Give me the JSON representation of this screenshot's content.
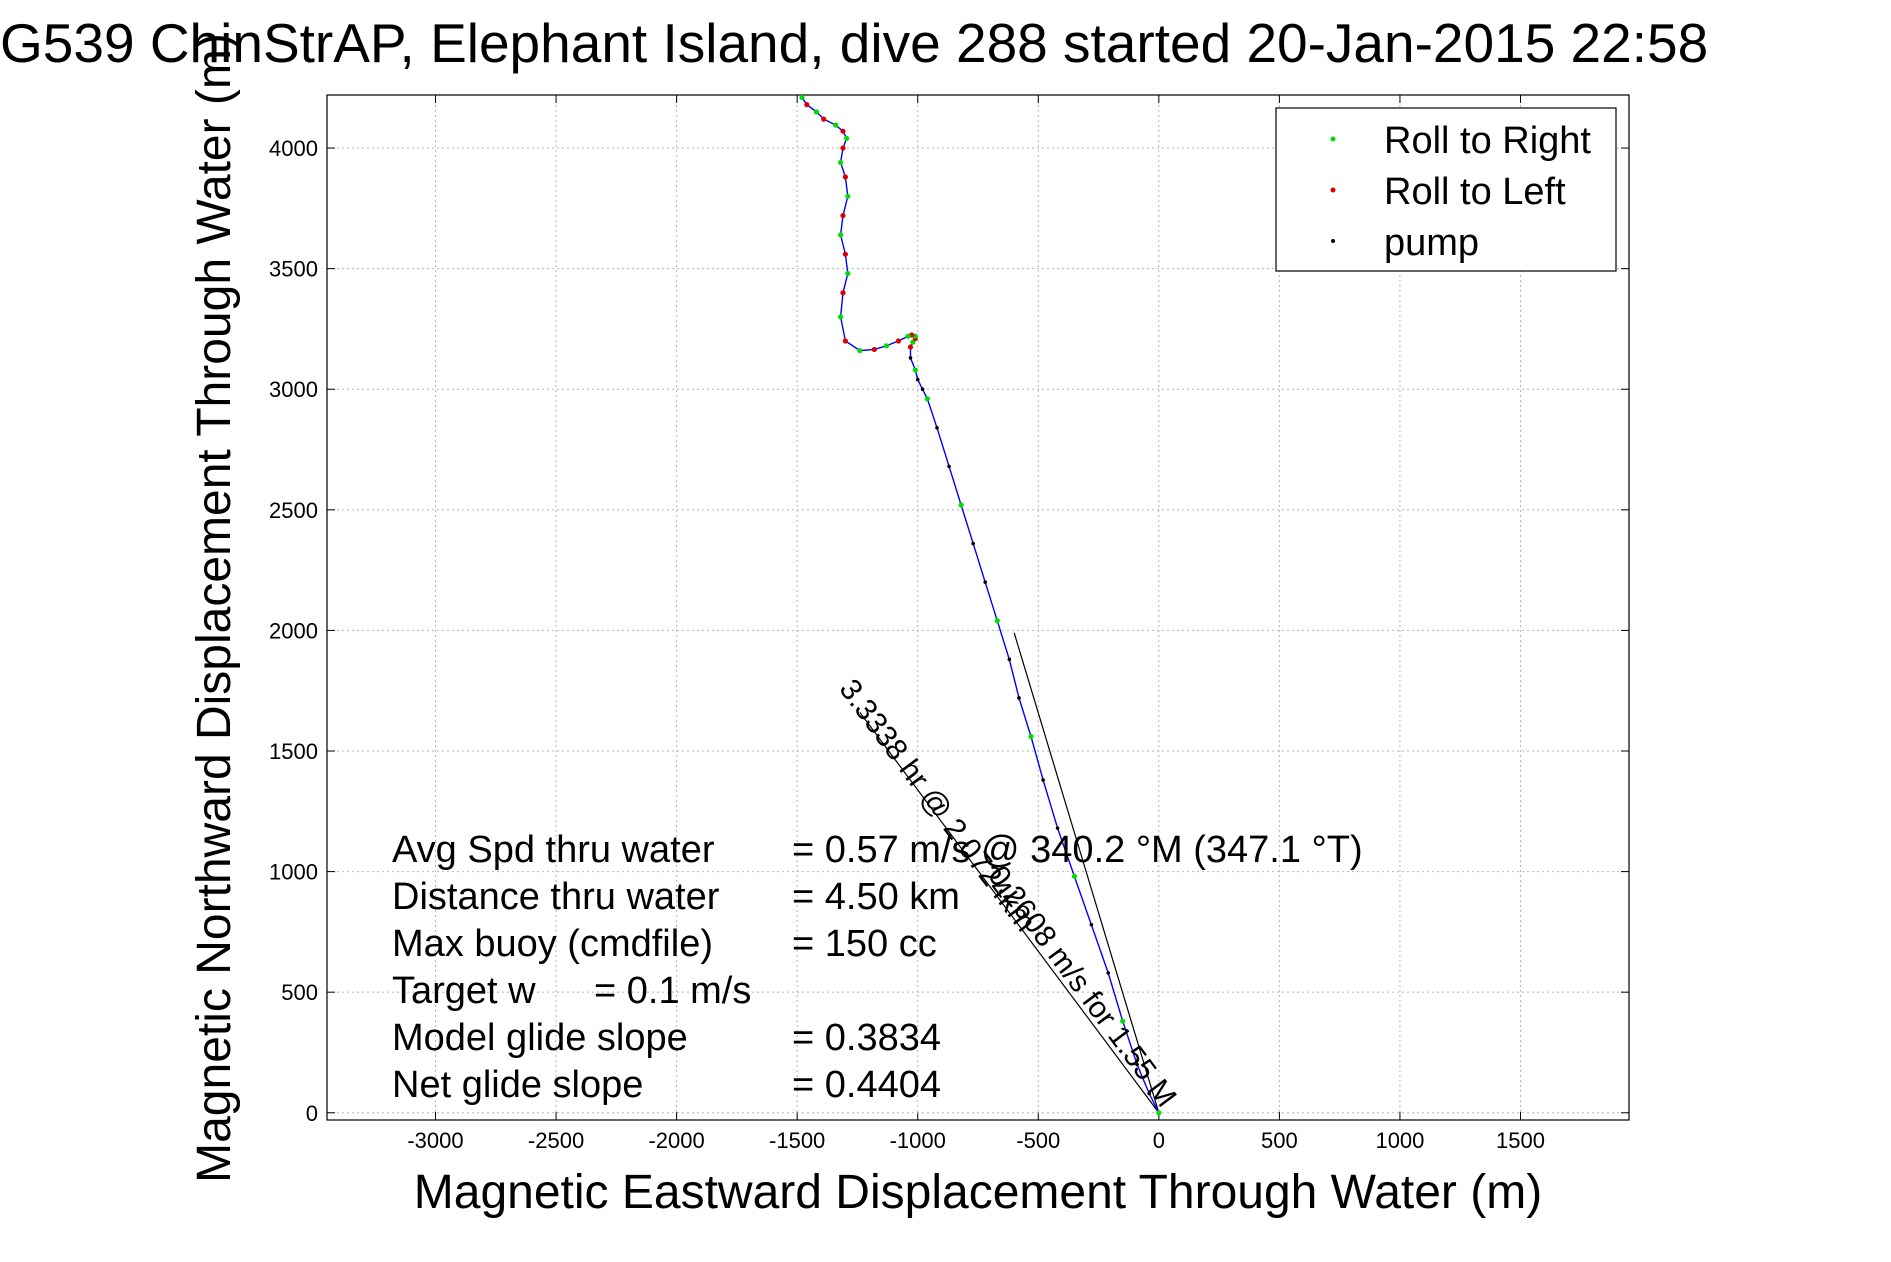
{
  "chart_data": {
    "type": "scatter",
    "title": "G539 ChinStrAP, Elephant Island, dive 288 started 20-Jan-2015 22:58",
    "xlabel": "Magnetic Eastward Displacement Through Water (m)",
    "ylabel": "Magnetic Northward Displacement Through Water (m)",
    "xlim": [
      -3450,
      1950
    ],
    "ylim": [
      -30,
      4220
    ],
    "xticks": [
      -3000,
      -2500,
      -2000,
      -1500,
      -1000,
      -500,
      0,
      500,
      1000,
      1500
    ],
    "yticks": [
      0,
      500,
      1000,
      1500,
      2000,
      2500,
      3000,
      3500,
      4000
    ],
    "grid": true,
    "legend_position": "top-right",
    "legend": [
      {
        "label": "Roll to Right",
        "color": "#00dd00"
      },
      {
        "label": "Roll to Left",
        "color": "#dd0000"
      },
      {
        "label": "pump",
        "color": "#000000"
      }
    ],
    "track_color": "#0000ff",
    "track": {
      "x": [
        0,
        -40,
        -90,
        -150,
        -210,
        -280,
        -350,
        -420,
        -480,
        -530,
        -580,
        -620,
        -670,
        -720,
        -770,
        -820,
        -870,
        -920,
        -960,
        -980,
        -1000,
        -1010,
        -1030,
        -1030,
        -1020,
        -1010,
        -1010,
        -1025,
        -1040,
        -1080,
        -1130,
        -1180,
        -1240,
        -1300,
        -1320,
        -1310,
        -1290,
        -1300,
        -1320,
        -1310,
        -1290,
        -1300,
        -1320,
        -1310,
        -1295,
        -1310,
        -1340,
        -1390,
        -1420,
        -1460,
        -1480
      ],
      "y": [
        0,
        80,
        200,
        380,
        580,
        780,
        980,
        1180,
        1380,
        1560,
        1720,
        1880,
        2040,
        2200,
        2360,
        2520,
        2680,
        2840,
        2960,
        3000,
        3040,
        3080,
        3130,
        3175,
        3195,
        3210,
        3220,
        3225,
        3220,
        3200,
        3180,
        3165,
        3160,
        3200,
        3300,
        3400,
        3480,
        3560,
        3640,
        3720,
        3800,
        3880,
        3940,
        4000,
        4040,
        4070,
        4095,
        4120,
        4150,
        4180,
        4210
      ]
    },
    "heading_lines": [
      {
        "from": [
          0,
          0
        ],
        "to": [
          -1240,
          1660
        ]
      },
      {
        "from": [
          0,
          0
        ],
        "to": [
          -600,
          1990
        ]
      }
    ],
    "rotated_labels": [
      {
        "text": "3.3338 hr @ 2.0724km",
        "x": -950,
        "y": 1250
      },
      {
        "text": "0.2608 m/s for 1.55 M",
        "x": -350,
        "y": 500
      }
    ],
    "stats": [
      {
        "label": "Avg Spd thru water",
        "value": "=  0.57 m/s @  340.2 °M (347.1 °T)"
      },
      {
        "label": "Distance thru water",
        "value": "=  4.50 km"
      },
      {
        "label": "Max buoy (cmdfile)",
        "value": "= 150 cc"
      },
      {
        "label": "Target w",
        "value": "= 0.1 m/s"
      },
      {
        "label": "Model glide slope",
        "value": "= 0.3834"
      },
      {
        "label": "Net glide slope",
        "value": "= 0.4404"
      }
    ]
  }
}
